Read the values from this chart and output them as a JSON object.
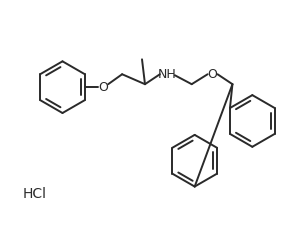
{
  "background_color": "#ffffff",
  "line_color": "#2a2a2a",
  "line_width": 1.4,
  "text_color": "#2a2a2a",
  "hcl_text": "HCl",
  "hcl_fontsize": 10,
  "nh_fontsize": 9,
  "o_fontsize": 9,
  "figsize": [
    2.86,
    2.29
  ],
  "dpi": 100,
  "xlim": [
    0,
    286
  ],
  "ylim": [
    0,
    229
  ]
}
